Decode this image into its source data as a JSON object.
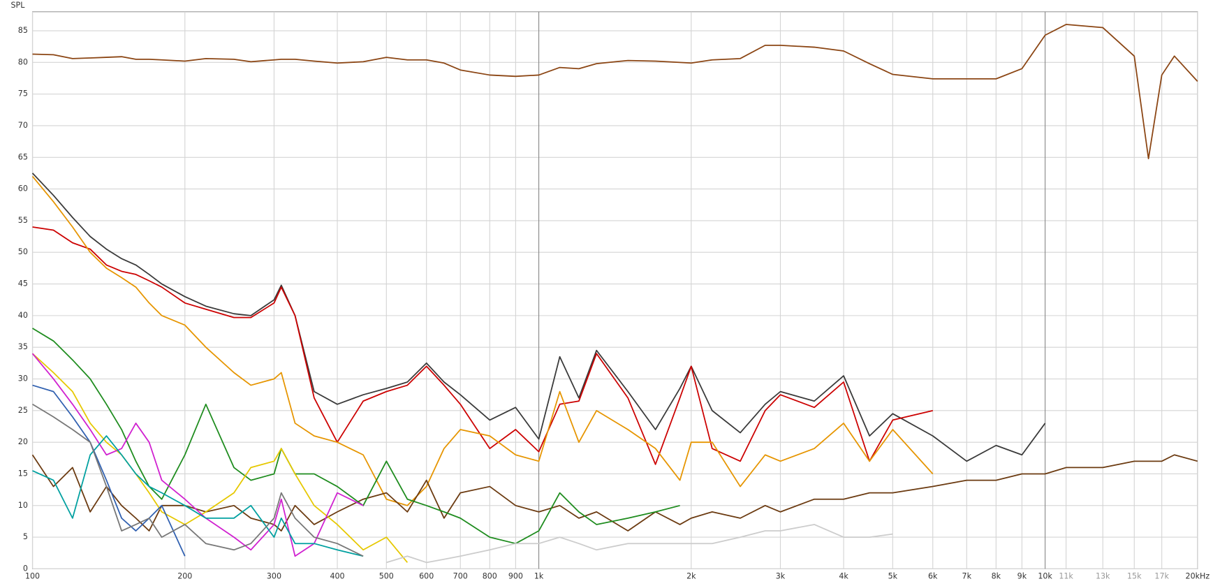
{
  "chart_data": {
    "type": "line",
    "y_label": "SPL",
    "xscale": "log",
    "grid": true,
    "xlim": [
      100,
      20000
    ],
    "ylim": [
      0,
      88
    ],
    "yticks": [
      0,
      5,
      10,
      15,
      20,
      25,
      30,
      35,
      40,
      45,
      50,
      55,
      60,
      65,
      70,
      75,
      80,
      85
    ],
    "xticks": [
      100,
      200,
      300,
      400,
      500,
      600,
      700,
      800,
      900,
      {
        "value": 1000,
        "label": "1k"
      },
      {
        "value": 2000,
        "label": "2k"
      },
      {
        "value": 3000,
        "label": "3k"
      },
      {
        "value": 4000,
        "label": "4k"
      },
      {
        "value": 5000,
        "label": "5k"
      },
      {
        "value": 6000,
        "label": "6k"
      },
      {
        "value": 7000,
        "label": "7k"
      },
      {
        "value": 8000,
        "label": "8k"
      },
      {
        "value": 9000,
        "label": "9k"
      },
      {
        "value": 10000,
        "label": "10k"
      },
      {
        "value": 11000,
        "label": "11k"
      },
      {
        "value": 13000,
        "label": "13k"
      },
      {
        "value": 15000,
        "label": "15k"
      },
      {
        "value": 17000,
        "label": "17k"
      },
      {
        "value": 20000,
        "label": "20kHz"
      }
    ],
    "x": [
      100,
      110,
      120,
      130,
      140,
      150,
      160,
      170,
      180,
      200,
      220,
      250,
      270,
      300,
      310,
      330,
      360,
      400,
      450,
      500,
      550,
      600,
      650,
      700,
      800,
      900,
      1000,
      1100,
      1200,
      1300,
      1500,
      1700,
      1900,
      2000,
      2200,
      2500,
      2800,
      3000,
      3500,
      4000,
      4500,
      5000,
      6000,
      7000,
      8000,
      9000,
      10000,
      11000,
      13000,
      15000,
      16000,
      17000,
      18000,
      20000
    ],
    "series": [
      {
        "color": "#8b4513",
        "values": [
          81.3,
          81.2,
          80.6,
          80.7,
          80.8,
          80.9,
          80.5,
          80.5,
          80.4,
          80.2,
          80.6,
          80.5,
          80.1,
          80.4,
          80.5,
          80.5,
          80.2,
          79.9,
          80.1,
          80.8,
          80.4,
          80.4,
          79.9,
          78.8,
          78.0,
          77.8,
          78.0,
          79.2,
          79.0,
          79.8,
          80.3,
          80.2,
          80.0,
          79.9,
          80.4,
          80.6,
          82.7,
          82.7,
          82.4,
          81.8,
          79.8,
          78.1,
          77.4,
          77.4,
          77.4,
          79.0,
          84.3,
          86.0,
          85.5,
          81.0,
          64.8,
          78.0,
          81.0,
          77.0
        ]
      },
      {
        "color": "#3a3a3a",
        "values": [
          62.5,
          59,
          55.5,
          52.5,
          50.5,
          49,
          48,
          46.5,
          45,
          43,
          41.5,
          40.3,
          40,
          42.5,
          44.8,
          40,
          28,
          26,
          27.5,
          28.5,
          29.5,
          32.5,
          29.5,
          27.5,
          23.5,
          25.5,
          20.5,
          33.5,
          27,
          34.5,
          28,
          22,
          28.5,
          32,
          25,
          21.5,
          26,
          28,
          26.5,
          30.5,
          21,
          24.5,
          21,
          17,
          19.5,
          18,
          23,
          null,
          null,
          null,
          null,
          null,
          null,
          null
        ]
      },
      {
        "color": "#cc0000",
        "values": [
          54,
          53.5,
          51.5,
          50.5,
          48,
          47,
          46.5,
          45.5,
          44.5,
          42,
          41,
          39.7,
          39.7,
          42,
          44.5,
          40,
          27,
          20,
          26.5,
          28,
          29,
          32,
          29,
          26,
          19,
          22,
          18.5,
          26,
          26.5,
          34,
          27,
          16.5,
          27,
          32,
          19,
          17,
          25,
          27.5,
          25.5,
          29.5,
          17,
          23.5,
          25,
          null,
          null,
          null,
          null,
          null,
          null,
          null,
          null,
          null,
          null,
          null
        ]
      },
      {
        "color": "#e69500",
        "values": [
          62,
          58,
          54,
          50,
          47.5,
          46,
          44.5,
          42,
          40,
          38.5,
          35,
          31,
          29,
          30,
          31,
          23,
          21,
          20,
          18,
          11,
          10,
          13,
          19,
          22,
          21,
          18,
          17,
          28,
          20,
          25,
          22,
          19,
          14,
          20,
          20,
          13,
          18,
          17,
          19,
          23,
          17,
          22,
          15,
          null,
          null,
          null,
          null,
          null,
          null,
          null,
          null,
          null,
          null,
          null
        ]
      },
      {
        "color": "#6b3a10",
        "values": [
          18,
          13,
          16,
          9,
          13,
          10,
          8,
          6,
          10,
          10,
          9,
          10,
          8,
          7,
          6,
          10,
          7,
          9,
          11,
          12,
          9,
          14,
          8,
          12,
          13,
          10,
          9,
          10,
          8,
          9,
          6,
          9,
          7,
          8,
          9,
          8,
          10,
          9,
          11,
          11,
          12,
          12,
          13,
          14,
          14,
          15,
          15,
          16,
          16,
          17,
          17,
          17,
          18,
          17
        ]
      },
      {
        "color": "#1e8c1e",
        "values": [
          38,
          36,
          33,
          30,
          26,
          22,
          17,
          13,
          11,
          18,
          26,
          16,
          14,
          15,
          19,
          15,
          15,
          13,
          10,
          17,
          11,
          10,
          9,
          8,
          5,
          4,
          6,
          12,
          9,
          7,
          8,
          9,
          10,
          null,
          null,
          null,
          null,
          null,
          null,
          null,
          null,
          null,
          null,
          null,
          null,
          null,
          null,
          null,
          null,
          null,
          null,
          null,
          null,
          null
        ]
      },
      {
        "color": "#e6c800",
        "values": [
          34,
          31,
          28,
          23,
          20,
          18,
          15,
          12,
          9,
          7,
          9,
          12,
          16,
          17,
          19,
          15,
          10,
          7,
          3,
          5,
          1,
          null,
          null,
          null,
          null,
          null,
          null,
          null,
          null,
          null,
          null,
          null,
          null,
          null,
          null,
          null,
          null,
          null,
          null,
          null,
          null,
          null,
          null,
          null,
          null,
          null,
          null,
          null,
          null,
          null,
          null,
          null,
          null,
          null
        ]
      },
      {
        "color": "#d020d0",
        "values": [
          34,
          30,
          26,
          22,
          18,
          19,
          23,
          20,
          14,
          11,
          8,
          5,
          3,
          7,
          11,
          2,
          4,
          12,
          10,
          null,
          null,
          null,
          null,
          null,
          null,
          null,
          null,
          null,
          null,
          null,
          null,
          null,
          null,
          null,
          null,
          null,
          null,
          null,
          null,
          null,
          null,
          null,
          null,
          null,
          null,
          null,
          null,
          null,
          null,
          null,
          null,
          null,
          null,
          null
        ]
      },
      {
        "color": "#00a0a0",
        "values": [
          15.5,
          14,
          8,
          18,
          21,
          18,
          15,
          13,
          12,
          10,
          8,
          8,
          10,
          5,
          8,
          4,
          4,
          3,
          2,
          null,
          null,
          null,
          null,
          null,
          null,
          null,
          null,
          null,
          null,
          null,
          null,
          null,
          null,
          null,
          null,
          null,
          null,
          null,
          null,
          null,
          null,
          null,
          null,
          null,
          null,
          null,
          null,
          null,
          null,
          null,
          null,
          null,
          null,
          null
        ]
      },
      {
        "color": "#3060b0",
        "values": [
          29,
          28,
          24,
          20,
          14,
          8,
          6,
          8,
          10,
          2,
          null,
          null,
          null,
          null,
          null,
          null,
          null,
          null,
          null,
          null,
          null,
          null,
          null,
          null,
          null,
          null,
          null,
          null,
          null,
          null,
          null,
          null,
          null,
          null,
          null,
          null,
          null,
          null,
          null,
          null,
          null,
          null,
          null,
          null,
          null,
          null,
          null,
          null,
          null,
          null,
          null,
          null,
          null,
          null
        ]
      },
      {
        "color": "#777777",
        "values": [
          26,
          24,
          22,
          20,
          13,
          6,
          7,
          8,
          5,
          7,
          4,
          3,
          4,
          8,
          12,
          8,
          5,
          4,
          2,
          null,
          null,
          null,
          null,
          null,
          null,
          null,
          null,
          null,
          null,
          null,
          null,
          null,
          null,
          null,
          null,
          null,
          null,
          null,
          null,
          null,
          null,
          null,
          null,
          null,
          null,
          null,
          null,
          null,
          null,
          null,
          null,
          null,
          null,
          null
        ]
      },
      {
        "color": "#cccccc",
        "values": [
          null,
          null,
          null,
          null,
          null,
          null,
          null,
          null,
          null,
          null,
          null,
          null,
          null,
          null,
          null,
          null,
          null,
          null,
          null,
          1,
          2,
          1,
          1.5,
          2,
          3,
          4,
          4,
          5,
          4,
          3,
          4,
          4,
          4,
          4,
          4,
          5,
          6,
          6,
          7,
          5,
          5,
          5.5,
          null,
          null,
          null,
          null,
          null,
          null,
          null,
          null,
          null,
          null,
          null,
          null
        ]
      }
    ]
  }
}
